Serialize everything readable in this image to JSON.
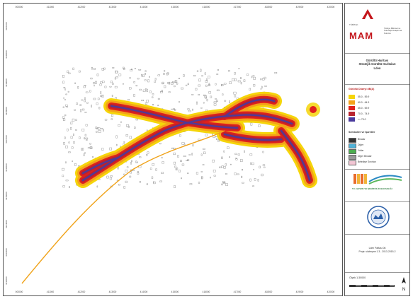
{
  "map": {
    "x_ticks": [
      "000000",
      "411000",
      "412000",
      "413000",
      "414000",
      "415000",
      "416000",
      "417000",
      "418000",
      "419000",
      "420000"
    ],
    "y_ticks": [
      "4341000",
      "4340000",
      "4339000",
      "4338000",
      "4337000",
      "4336000",
      "4335000",
      "4334000",
      "4333000",
      "4332000"
    ],
    "colors": {
      "band1": "#f5d50a",
      "band2": "#f4a21a",
      "band3": "#e0201c",
      "band4": "#b8232e",
      "band5": "#4a3a9c",
      "road": "#f0a31a",
      "buildings": "#888888"
    }
  },
  "legend": {
    "logo": {
      "agency": "TÜBİTAK",
      "brand": "MAM",
      "side_text": "Türkiye Bilimsel ve Teknolojik Araştırma Kurumu"
    },
    "title": {
      "line1": "Gürültü Haritası",
      "line2": "Stratejik Gürültü Haritaları",
      "line3": "Lden"
    },
    "noise_heading": "Gürültü Düzeyi dB(A)",
    "bands": [
      {
        "label": "55.0 - 59.9",
        "color": "#f5d50a"
      },
      {
        "label": "60.0 - 64.9",
        "color": "#f4a21a"
      },
      {
        "label": "65.0 - 69.9",
        "color": "#e0201c"
      },
      {
        "label": "70.0 - 74.9",
        "color": "#b8232e"
      },
      {
        "label": ">= 75.0",
        "color": "#4a3a9c"
      }
    ],
    "symbols_heading": "Semboller ve Işaretler",
    "symbols": [
      {
        "label": "Binalar",
        "color": "#333333"
      },
      {
        "label": "Diğer",
        "color": "#4fb3d9"
      },
      {
        "label": "Yollar",
        "color": "#4caf50"
      },
      {
        "label": "Diğer Binalar",
        "color": "#999999"
      },
      {
        "label": "Belediye Sınırları",
        "color": "#f2c6d4"
      }
    ],
    "partner_text": "T.C. ÇEVRE VE ŞEHİRCİLİK BAKANLIĞI",
    "info": {
      "line1": "Lden Paftası 06",
      "line2": "Proje: sözleşme 1.3 - 2013-2015-2"
    },
    "scale_label": "Ölçek 1:30000"
  }
}
